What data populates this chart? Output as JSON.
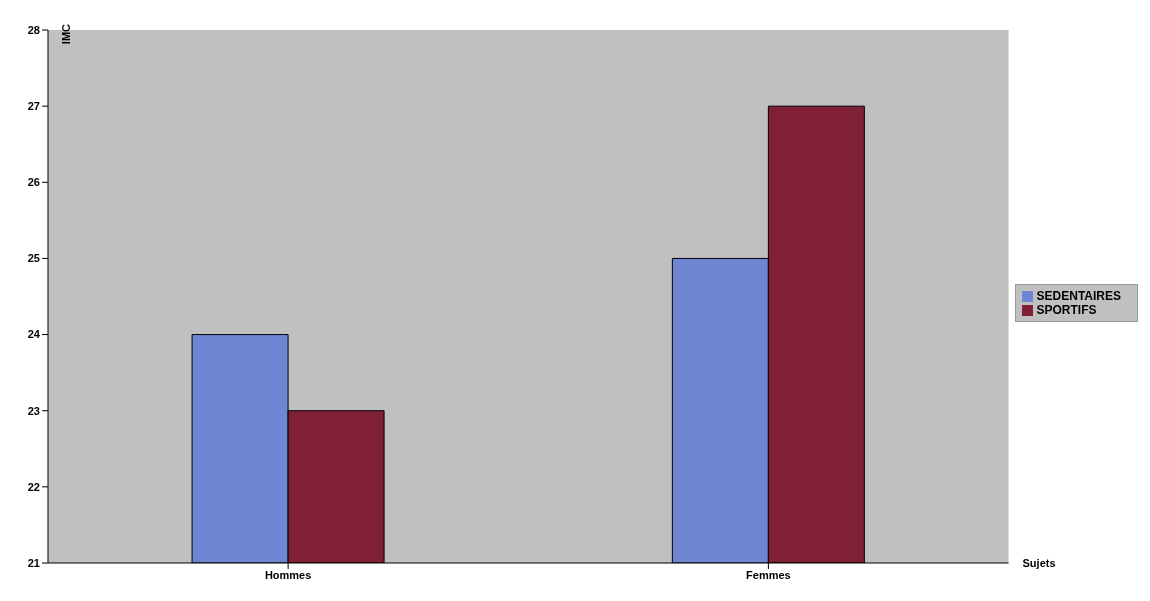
{
  "chart_data": {
    "type": "bar",
    "xlabel": "Sujets",
    "ylabel": "IMC",
    "categories": [
      "Hommes",
      "Femmes"
    ],
    "series": [
      {
        "name": "SEDENTAIRES",
        "color": "#6f86d4",
        "values": [
          24,
          25
        ]
      },
      {
        "name": "SPORTIFS",
        "color": "#7f2035",
        "values": [
          23,
          27
        ]
      }
    ],
    "ylim": [
      21,
      28
    ],
    "yticks": [
      21,
      22,
      23,
      24,
      25,
      26,
      27,
      28
    ],
    "grid": false,
    "legend": "right"
  }
}
